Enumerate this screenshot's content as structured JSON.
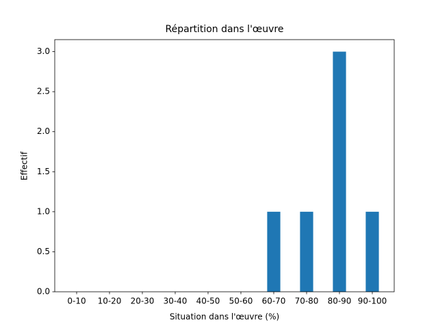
{
  "chart_data": {
    "type": "bar",
    "title": "Répartition dans l'œuvre",
    "x_label": "Situation dans l'œuvre (%)",
    "y_label": "Effectif",
    "categories": [
      "0-10",
      "10-20",
      "20-30",
      "30-40",
      "40-50",
      "50-60",
      "60-70",
      "70-80",
      "80-90",
      "90-100"
    ],
    "values": [
      0,
      0,
      0,
      0,
      0,
      0,
      1,
      1,
      3,
      1
    ],
    "color": "#1f77b4",
    "ylim": [
      0,
      3.15
    ],
    "yticks": [
      {
        "value": 0,
        "label": "0.0"
      },
      {
        "value": 0.5,
        "label": "0.5"
      },
      {
        "value": 1,
        "label": "1.0"
      },
      {
        "value": 1.5,
        "label": "1.5"
      },
      {
        "value": 2,
        "label": "2.0"
      },
      {
        "value": 2.5,
        "label": "2.5"
      },
      {
        "value": 3,
        "label": "3.0"
      }
    ],
    "grid": false
  }
}
